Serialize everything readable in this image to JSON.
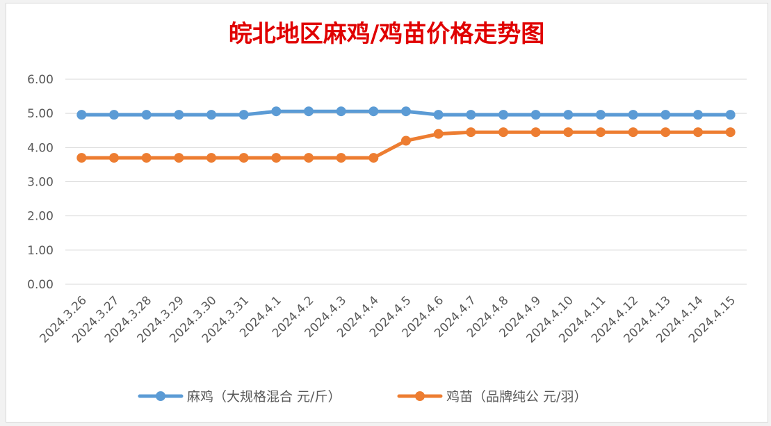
{
  "chart_data": {
    "type": "line",
    "title": "皖北地区麻鸡/鸡苗价格走势图",
    "title_color": "#e00000",
    "categories": [
      "2024.3.26",
      "2024.3.27",
      "2024.3.28",
      "2024.3.29",
      "2024.3.30",
      "2024.3.31",
      "2024.4.1",
      "2024.4.2",
      "2024.4.3",
      "2024.4.4",
      "2024.4.5",
      "2024.4.6",
      "2024.4.7",
      "2024.4.8",
      "2024.4.9",
      "2024.4.10",
      "2024.4.11",
      "2024.4.12",
      "2024.4.13",
      "2024.4.14",
      "2024.4.15"
    ],
    "yticks": [
      "0.00",
      "1.00",
      "2.00",
      "3.00",
      "4.00",
      "5.00",
      "6.00"
    ],
    "ylim": [
      0,
      6
    ],
    "grid": true,
    "legend_position": "bottom",
    "series": [
      {
        "name": "麻鸡（大规格混合 元/斤）",
        "color": "#5b9bd5",
        "values": [
          4.96,
          4.96,
          4.96,
          4.96,
          4.96,
          4.96,
          5.06,
          5.06,
          5.06,
          5.06,
          5.06,
          4.96,
          4.96,
          4.96,
          4.96,
          4.96,
          4.96,
          4.96,
          4.96,
          4.96,
          4.96
        ]
      },
      {
        "name": "鸡苗（品牌纯公 元/羽）",
        "color": "#ed7d31",
        "values": [
          3.7,
          3.7,
          3.7,
          3.7,
          3.7,
          3.7,
          3.7,
          3.7,
          3.7,
          3.7,
          4.2,
          4.4,
          4.45,
          4.45,
          4.45,
          4.45,
          4.45,
          4.45,
          4.45,
          4.45,
          4.45
        ]
      }
    ]
  }
}
